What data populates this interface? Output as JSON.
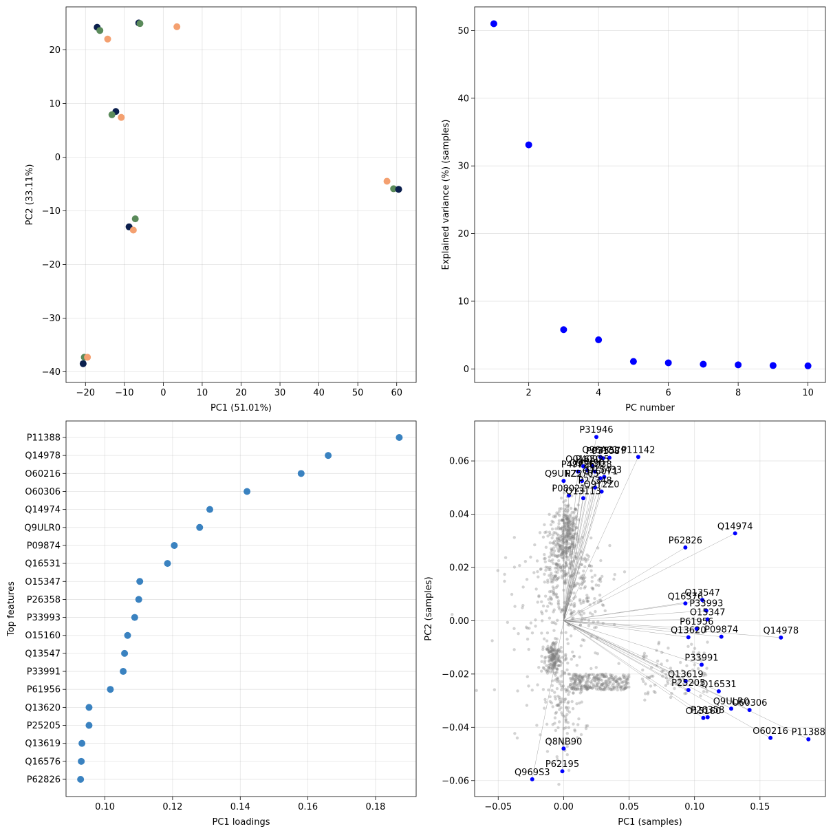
{
  "chart_data": [
    {
      "type": "scatter",
      "xlabel": "PC1 (51.01%)",
      "ylabel": "PC2 (33.11%)",
      "xlim": [
        -25,
        65
      ],
      "ylim": [
        -42,
        28
      ],
      "xticks": [
        -20,
        -10,
        0,
        10,
        20,
        30,
        40,
        50,
        60
      ],
      "yticks": [
        -40,
        -30,
        -20,
        -10,
        0,
        10,
        20
      ],
      "grid": true,
      "colors": [
        "#0b1f4d",
        "#5a8a5a",
        "#f4a070"
      ],
      "points": [
        {
          "x": -17,
          "y": 24.2,
          "c": 0
        },
        {
          "x": -16.3,
          "y": 23.6,
          "c": 1
        },
        {
          "x": -14.3,
          "y": 22,
          "c": 2
        },
        {
          "x": -6.3,
          "y": 25,
          "c": 0
        },
        {
          "x": -6,
          "y": 24.9,
          "c": 1
        },
        {
          "x": 3.5,
          "y": 24.3,
          "c": 2
        },
        {
          "x": -12.2,
          "y": 8.5,
          "c": 0
        },
        {
          "x": -13.2,
          "y": 7.9,
          "c": 1
        },
        {
          "x": -10.8,
          "y": 7.4,
          "c": 2
        },
        {
          "x": 57.5,
          "y": -4.5,
          "c": 2
        },
        {
          "x": 59.2,
          "y": -5.9,
          "c": 1
        },
        {
          "x": 60.5,
          "y": -6,
          "c": 0
        },
        {
          "x": -7.2,
          "y": -11.5,
          "c": 1
        },
        {
          "x": -8.8,
          "y": -13,
          "c": 0
        },
        {
          "x": -7.7,
          "y": -13.6,
          "c": 2
        },
        {
          "x": -20.3,
          "y": -37.3,
          "c": 1
        },
        {
          "x": -19.5,
          "y": -37.3,
          "c": 2
        },
        {
          "x": -20.6,
          "y": -38.5,
          "c": 0
        }
      ]
    },
    {
      "type": "scatter",
      "xlabel": "PC number",
      "ylabel": "Explained variance (%) (samples)",
      "xlim": [
        0.45,
        10.5
      ],
      "ylim": [
        -2,
        53.5
      ],
      "xticks": [
        2,
        4,
        6,
        8,
        10
      ],
      "yticks": [
        0,
        10,
        20,
        30,
        40,
        50
      ],
      "grid": true,
      "color": "#0000ff",
      "x": [
        1,
        2,
        3,
        4,
        5,
        6,
        7,
        8,
        9,
        10
      ],
      "y": [
        51.01,
        33.11,
        5.8,
        4.3,
        1.1,
        0.9,
        0.7,
        0.6,
        0.5,
        0.45
      ]
    },
    {
      "type": "scatter",
      "xlabel": "PC1 loadings",
      "ylabel": "Top features",
      "xlim": [
        0.0885,
        0.192
      ],
      "xticks": [
        0.1,
        0.12,
        0.14,
        0.16,
        0.18
      ],
      "xtick_labels": [
        "0.10",
        "0.12",
        "0.14",
        "0.16",
        "0.18"
      ],
      "grid": true,
      "color": "#3a82c0",
      "features": [
        "P11388",
        "Q14978",
        "O60216",
        "O60306",
        "Q14974",
        "Q9ULR0",
        "P09874",
        "Q16531",
        "O15347",
        "P26358",
        "P33993",
        "O15160",
        "Q13547",
        "P33991",
        "P61956",
        "Q13620",
        "P25205",
        "Q13619",
        "Q16576",
        "P62826"
      ],
      "values": [
        0.187,
        0.166,
        0.158,
        0.142,
        0.131,
        0.128,
        0.1205,
        0.1185,
        0.1103,
        0.11,
        0.1088,
        0.1067,
        0.1058,
        0.1054,
        0.1016,
        0.0953,
        0.0953,
        0.0932,
        0.093,
        0.0928
      ]
    },
    {
      "type": "scatter",
      "xlabel": "PC1 (samples)",
      "ylabel": "PC2 (samples)",
      "xlim": [
        -0.068,
        0.2
      ],
      "ylim": [
        -0.066,
        0.075
      ],
      "xticks": [
        -0.05,
        0.0,
        0.05,
        0.1,
        0.15
      ],
      "xtick_labels": [
        "−0.05",
        "0.00",
        "0.05",
        "0.10",
        "0.15"
      ],
      "yticks": [
        -0.06,
        -0.04,
        -0.02,
        0.0,
        0.02,
        0.04,
        0.06
      ],
      "ytick_labels": [
        "−0.06",
        "−0.04",
        "−0.02",
        "0.00",
        "0.02",
        "0.04",
        "0.06"
      ],
      "grid": true,
      "background_color": "#808080",
      "highlight_color": "#0000ff",
      "labeled": [
        {
          "name": "P31946",
          "x": 0.025,
          "y": 0.069
        },
        {
          "name": "Q96AC1",
          "x": 0.028,
          "y": 0.0615
        },
        {
          "name": "P07108",
          "x": 0.03,
          "y": 0.061
        },
        {
          "name": "P35579",
          "x": 0.035,
          "y": 0.0612
        },
        {
          "name": "P11142",
          "x": 0.057,
          "y": 0.0615
        },
        {
          "name": "Q01650",
          "x": 0.015,
          "y": 0.058
        },
        {
          "name": "P40925",
          "x": 0.022,
          "y": 0.058
        },
        {
          "name": "P49736",
          "x": 0.011,
          "y": 0.056
        },
        {
          "name": "Q9Y490",
          "x": 0.018,
          "y": 0.0565
        },
        {
          "name": "P26038",
          "x": 0.024,
          "y": 0.056
        },
        {
          "name": "Q15433",
          "x": 0.031,
          "y": 0.054
        },
        {
          "name": "Q9UNZ2",
          "x": 0.0,
          "y": 0.0525
        },
        {
          "name": "P25705",
          "x": 0.014,
          "y": 0.0525
        },
        {
          "name": "Q76071",
          "x": 0.028,
          "y": 0.0535
        },
        {
          "name": "P27348",
          "x": 0.024,
          "y": 0.05
        },
        {
          "name": "Q9Y2Z0",
          "x": 0.029,
          "y": 0.0485
        },
        {
          "name": "P08021",
          "x": 0.004,
          "y": 0.047
        },
        {
          "name": "Q13113",
          "x": 0.015,
          "y": 0.046
        },
        {
          "name": "Q14974",
          "x": 0.131,
          "y": 0.0328
        },
        {
          "name": "P62826",
          "x": 0.093,
          "y": 0.0275
        },
        {
          "name": "Q16576",
          "x": 0.093,
          "y": 0.0065
        },
        {
          "name": "Q13547",
          "x": 0.106,
          "y": 0.0078
        },
        {
          "name": "P33993",
          "x": 0.109,
          "y": 0.0038
        },
        {
          "name": "O15347",
          "x": 0.11,
          "y": 0.0005
        },
        {
          "name": "P61956",
          "x": 0.1016,
          "y": -0.003
        },
        {
          "name": "Q13620",
          "x": 0.0953,
          "y": -0.0062
        },
        {
          "name": "P09874",
          "x": 0.1205,
          "y": -0.006
        },
        {
          "name": "Q14978",
          "x": 0.166,
          "y": -0.0063
        },
        {
          "name": "P33991",
          "x": 0.1054,
          "y": -0.0165
        },
        {
          "name": "Q13619",
          "x": 0.0932,
          "y": -0.0227
        },
        {
          "name": "P25205",
          "x": 0.0953,
          "y": -0.026
        },
        {
          "name": "Q16531",
          "x": 0.1185,
          "y": -0.0265
        },
        {
          "name": "Q9ULR0",
          "x": 0.128,
          "y": -0.033
        },
        {
          "name": "O60306",
          "x": 0.142,
          "y": -0.0335
        },
        {
          "name": "O15160",
          "x": 0.1067,
          "y": -0.0365
        },
        {
          "name": "P26358",
          "x": 0.11,
          "y": -0.0362
        },
        {
          "name": "O60216",
          "x": 0.158,
          "y": -0.044
        },
        {
          "name": "P11388",
          "x": 0.187,
          "y": -0.0445
        },
        {
          "name": "Q8NB90",
          "x": 0.0,
          "y": -0.048
        },
        {
          "name": "P62195",
          "x": -0.001,
          "y": -0.0565
        },
        {
          "name": "Q969S3",
          "x": -0.024,
          "y": -0.0595
        }
      ]
    }
  ]
}
